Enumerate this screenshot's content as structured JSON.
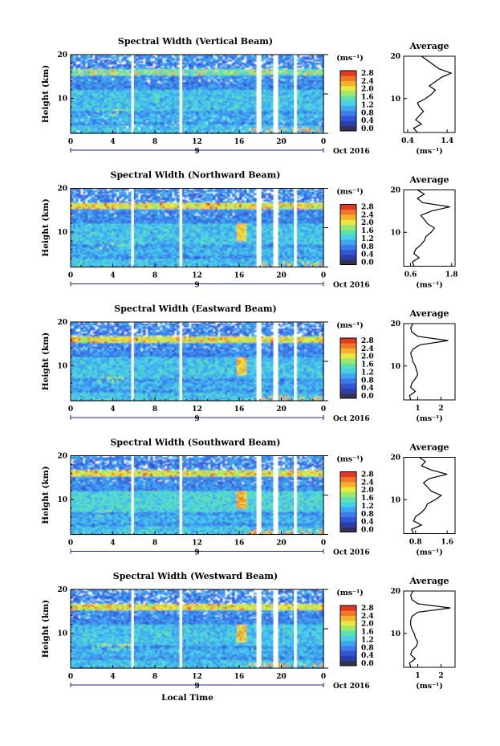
{
  "chart_data": [
    {
      "type": "heatmap",
      "title": "Spectral Width (Vertical Beam)",
      "ylabel": "Height (km)",
      "ylim": [
        2,
        20
      ],
      "yticks": [
        {
          "v": 20,
          "t": "20"
        },
        {
          "v": 10,
          "t": "10"
        }
      ],
      "xticks": [
        "0",
        "4",
        "8",
        "12",
        "16",
        "20",
        "0"
      ],
      "xlim": [
        0,
        24
      ],
      "date_label": "9",
      "month_label": "Oct 2016",
      "colorbar": {
        "unit": "(ms⁻¹)",
        "ticks": [
          "0.0",
          "0.4",
          "0.8",
          "1.2",
          "1.6",
          "2.0",
          "2.4",
          "2.8"
        ],
        "colors": [
          "#333355",
          "#2b3fa8",
          "#3257d6",
          "#3d7be8",
          "#3fa7f0",
          "#48cfe6",
          "#5fe0b0",
          "#9de86a",
          "#e8e840",
          "#f5b030",
          "#f07828",
          "#e03a22"
        ]
      },
      "data_gaps_hours": [
        [
          5.8,
          6.0
        ],
        [
          10.4,
          10.6
        ],
        [
          17.7,
          18.1
        ],
        [
          19.3,
          19.7
        ],
        [
          21.2,
          21.4
        ]
      ],
      "profile": {
        "title": "Average",
        "xlabel": "(ms⁻¹)",
        "xticks": [
          "0.4",
          "1.4"
        ],
        "xlim": [
          0.3,
          1.6
        ],
        "height_km": [
          2,
          3,
          4,
          5,
          6,
          7,
          8,
          9,
          10,
          11,
          12,
          13,
          14,
          15,
          16,
          17,
          18,
          19,
          20
        ],
        "width_ms": [
          0.65,
          0.55,
          0.75,
          0.6,
          0.7,
          0.8,
          0.7,
          0.65,
          0.85,
          1.0,
          1.1,
          0.95,
          1.1,
          1.25,
          1.5,
          1.2,
          1.05,
          0.9,
          0.75
        ]
      }
    },
    {
      "type": "heatmap",
      "title": "Spectral Width (Northward Beam)",
      "ylabel": "Height (km)",
      "ylim": [
        2,
        20
      ],
      "yticks": [
        {
          "v": 20,
          "t": "20"
        },
        {
          "v": 10,
          "t": "10"
        }
      ],
      "xticks": [
        "0",
        "4",
        "8",
        "12",
        "16",
        "20",
        "0"
      ],
      "xlim": [
        0,
        24
      ],
      "date_label": "9",
      "month_label": "Oct 2016",
      "colorbar": {
        "unit": "(ms⁻¹)",
        "ticks": [
          "0.0",
          "0.4",
          "0.8",
          "1.2",
          "1.6",
          "2.0",
          "2.4",
          "2.8"
        ],
        "colors": [
          "#333355",
          "#2b3fa8",
          "#3257d6",
          "#3d7be8",
          "#3fa7f0",
          "#48cfe6",
          "#5fe0b0",
          "#9de86a",
          "#e8e840",
          "#f5b030",
          "#f07828",
          "#e03a22"
        ]
      },
      "data_gaps_hours": [
        [
          5.8,
          6.0
        ],
        [
          10.4,
          10.6
        ],
        [
          17.7,
          18.1
        ],
        [
          19.3,
          19.7
        ],
        [
          21.2,
          21.4
        ]
      ],
      "profile": {
        "title": "Average",
        "xlabel": "(ms⁻¹)",
        "xticks": [
          "0.6",
          "1.8"
        ],
        "xlim": [
          0.4,
          1.9
        ],
        "height_km": [
          2,
          3,
          4,
          5,
          6,
          7,
          8,
          9,
          10,
          11,
          12,
          13,
          14,
          15,
          16,
          17,
          18,
          19,
          20
        ],
        "width_ms": [
          0.7,
          0.65,
          0.85,
          0.7,
          0.75,
          0.9,
          1.0,
          1.05,
          1.2,
          1.3,
          1.1,
          1.0,
          0.9,
          1.2,
          1.75,
          0.95,
          0.8,
          1.0,
          0.8
        ]
      }
    },
    {
      "type": "heatmap",
      "title": "Spectral Width (Eastward Beam)",
      "ylabel": "Height (km)",
      "ylim": [
        2,
        20
      ],
      "yticks": [
        {
          "v": 20,
          "t": "20"
        },
        {
          "v": 10,
          "t": "10"
        }
      ],
      "xticks": [
        "0",
        "4",
        "8",
        "12",
        "16",
        "20",
        "0"
      ],
      "xlim": [
        0,
        24
      ],
      "date_label": "9",
      "month_label": "Oct 2016",
      "colorbar": {
        "unit": "(ms⁻¹)",
        "ticks": [
          "0.0",
          "0.4",
          "0.8",
          "1.2",
          "1.6",
          "2.0",
          "2.4",
          "2.8"
        ],
        "colors": [
          "#333355",
          "#2b3fa8",
          "#3257d6",
          "#3d7be8",
          "#3fa7f0",
          "#48cfe6",
          "#5fe0b0",
          "#9de86a",
          "#e8e840",
          "#f5b030",
          "#f07828",
          "#e03a22"
        ]
      },
      "data_gaps_hours": [
        [
          5.8,
          6.0
        ],
        [
          10.4,
          10.6
        ],
        [
          17.7,
          18.1
        ],
        [
          19.3,
          19.7
        ],
        [
          21.2,
          21.4
        ]
      ],
      "profile": {
        "title": "Average",
        "xlabel": "(ms⁻¹)",
        "xticks": [
          "1",
          "2"
        ],
        "xlim": [
          0.4,
          2.6
        ],
        "height_km": [
          2,
          3,
          4,
          5,
          6,
          7,
          8,
          9,
          10,
          11,
          12,
          13,
          14,
          15,
          16,
          17,
          18,
          19,
          20
        ],
        "width_ms": [
          0.7,
          0.65,
          0.9,
          0.7,
          0.75,
          0.9,
          1.0,
          0.95,
          0.9,
          0.8,
          0.75,
          0.7,
          0.8,
          1.1,
          2.3,
          1.0,
          0.75,
          0.7,
          0.8
        ]
      }
    },
    {
      "type": "heatmap",
      "title": "Spectral Width (Southward Beam)",
      "ylabel": "Height (km)",
      "ylim": [
        2,
        20
      ],
      "yticks": [
        {
          "v": 20,
          "t": "20"
        },
        {
          "v": 10,
          "t": "10"
        }
      ],
      "xticks": [
        "0",
        "4",
        "8",
        "12",
        "16",
        "20",
        "0"
      ],
      "xlim": [
        0,
        24
      ],
      "date_label": "9",
      "month_label": "Oct 2016",
      "colorbar": {
        "unit": "(ms⁻¹)",
        "ticks": [
          "0.0",
          "0.4",
          "0.8",
          "1.2",
          "1.6",
          "2.0",
          "2.4",
          "2.8"
        ],
        "colors": [
          "#333355",
          "#2b3fa8",
          "#3257d6",
          "#3d7be8",
          "#3fa7f0",
          "#48cfe6",
          "#5fe0b0",
          "#9de86a",
          "#e8e840",
          "#f5b030",
          "#f07828",
          "#e03a22"
        ]
      },
      "data_gaps_hours": [
        [
          5.8,
          6.0
        ],
        [
          10.4,
          10.6
        ],
        [
          17.7,
          18.1
        ],
        [
          19.3,
          19.7
        ],
        [
          21.2,
          21.4
        ]
      ],
      "profile": {
        "title": "Average",
        "xlabel": "(ms⁻¹)",
        "xticks": [
          "0.8",
          "1.6"
        ],
        "xlim": [
          0.5,
          1.8
        ],
        "height_km": [
          2,
          3,
          4,
          5,
          6,
          7,
          8,
          9,
          10,
          11,
          12,
          13,
          14,
          15,
          16,
          17,
          18,
          19,
          20
        ],
        "width_ms": [
          0.75,
          0.7,
          0.95,
          0.75,
          0.8,
          0.95,
          1.05,
          1.1,
          1.3,
          1.45,
          1.2,
          1.1,
          1.0,
          1.15,
          1.6,
          1.2,
          0.95,
          1.05,
          0.9
        ]
      }
    },
    {
      "type": "heatmap",
      "title": "Spectral Width (Westward Beam)",
      "ylabel": "Height (km)",
      "ylim": [
        2,
        20
      ],
      "yticks": [
        {
          "v": 20,
          "t": "20"
        },
        {
          "v": 10,
          "t": "10"
        }
      ],
      "xticks": [
        "0",
        "4",
        "8",
        "12",
        "16",
        "20",
        "0"
      ],
      "xlim": [
        0,
        24
      ],
      "date_label": "9",
      "month_label": "Oct 2016",
      "xlabel": "Local Time",
      "colorbar": {
        "unit": "(ms⁻¹)",
        "ticks": [
          "0.0",
          "0.4",
          "0.8",
          "1.2",
          "1.6",
          "2.0",
          "2.4",
          "2.8"
        ],
        "colors": [
          "#333355",
          "#2b3fa8",
          "#3257d6",
          "#3d7be8",
          "#3fa7f0",
          "#48cfe6",
          "#5fe0b0",
          "#9de86a",
          "#e8e840",
          "#f5b030",
          "#f07828",
          "#e03a22"
        ]
      },
      "data_gaps_hours": [
        [
          5.8,
          6.0
        ],
        [
          10.4,
          10.6
        ],
        [
          17.7,
          18.1
        ],
        [
          19.3,
          19.7
        ],
        [
          21.2,
          21.4
        ]
      ],
      "profile": {
        "title": "Average",
        "xlabel": "(ms⁻¹)",
        "xticks": [
          "1",
          "2"
        ],
        "xlim": [
          0.4,
          2.6
        ],
        "height_km": [
          2,
          3,
          4,
          5,
          6,
          7,
          8,
          9,
          10,
          11,
          12,
          13,
          14,
          15,
          16,
          17,
          18,
          19,
          20
        ],
        "width_ms": [
          0.7,
          0.65,
          0.9,
          0.7,
          0.75,
          0.95,
          1.0,
          0.9,
          0.85,
          0.75,
          0.7,
          0.7,
          0.75,
          1.0,
          2.4,
          1.0,
          0.75,
          0.7,
          0.8
        ]
      }
    }
  ]
}
